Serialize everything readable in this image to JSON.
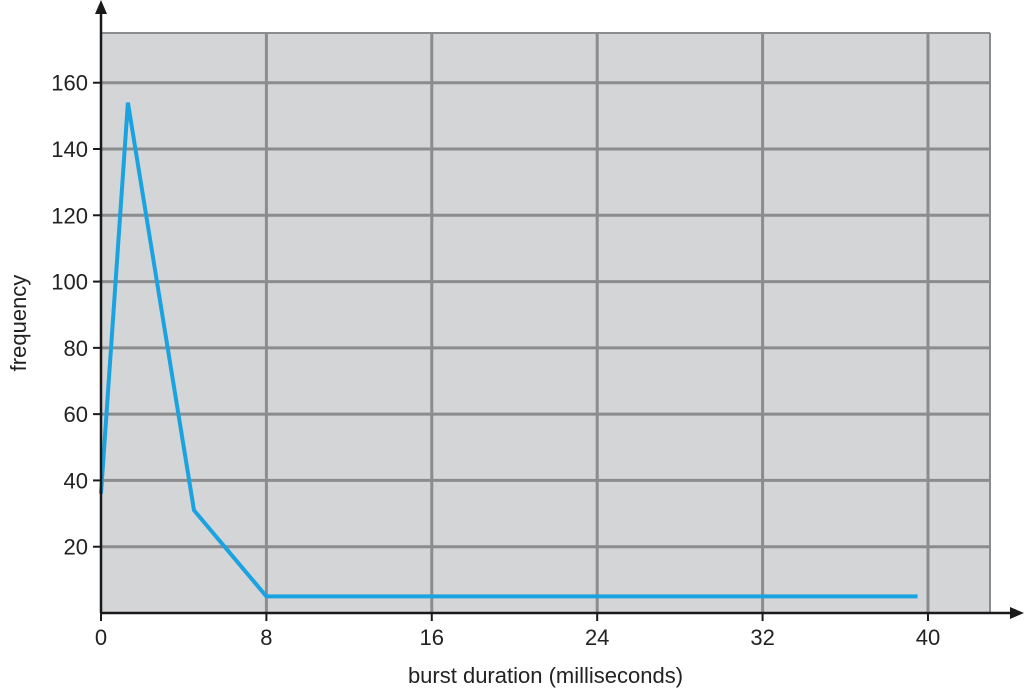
{
  "chart_data": {
    "type": "line",
    "title": "",
    "xlabel": "burst duration (milliseconds)",
    "ylabel": "frequency",
    "x_ticks": [
      0,
      8,
      16,
      24,
      32,
      40
    ],
    "y_ticks": [
      20,
      40,
      60,
      80,
      100,
      120,
      140,
      160
    ],
    "xlim": [
      0,
      43
    ],
    "ylim": [
      0,
      175
    ],
    "grid": true,
    "legend": "none",
    "series": [
      {
        "x": [
          0,
          1.3,
          4.5,
          8,
          39.5
        ],
        "y": [
          36,
          154,
          31,
          5,
          5
        ]
      }
    ],
    "colors": {
      "plot_background": "#d4d5d7",
      "grid": "#8b8c8e",
      "line": "#1aa3e0",
      "axis": "#1a1a1a"
    }
  }
}
